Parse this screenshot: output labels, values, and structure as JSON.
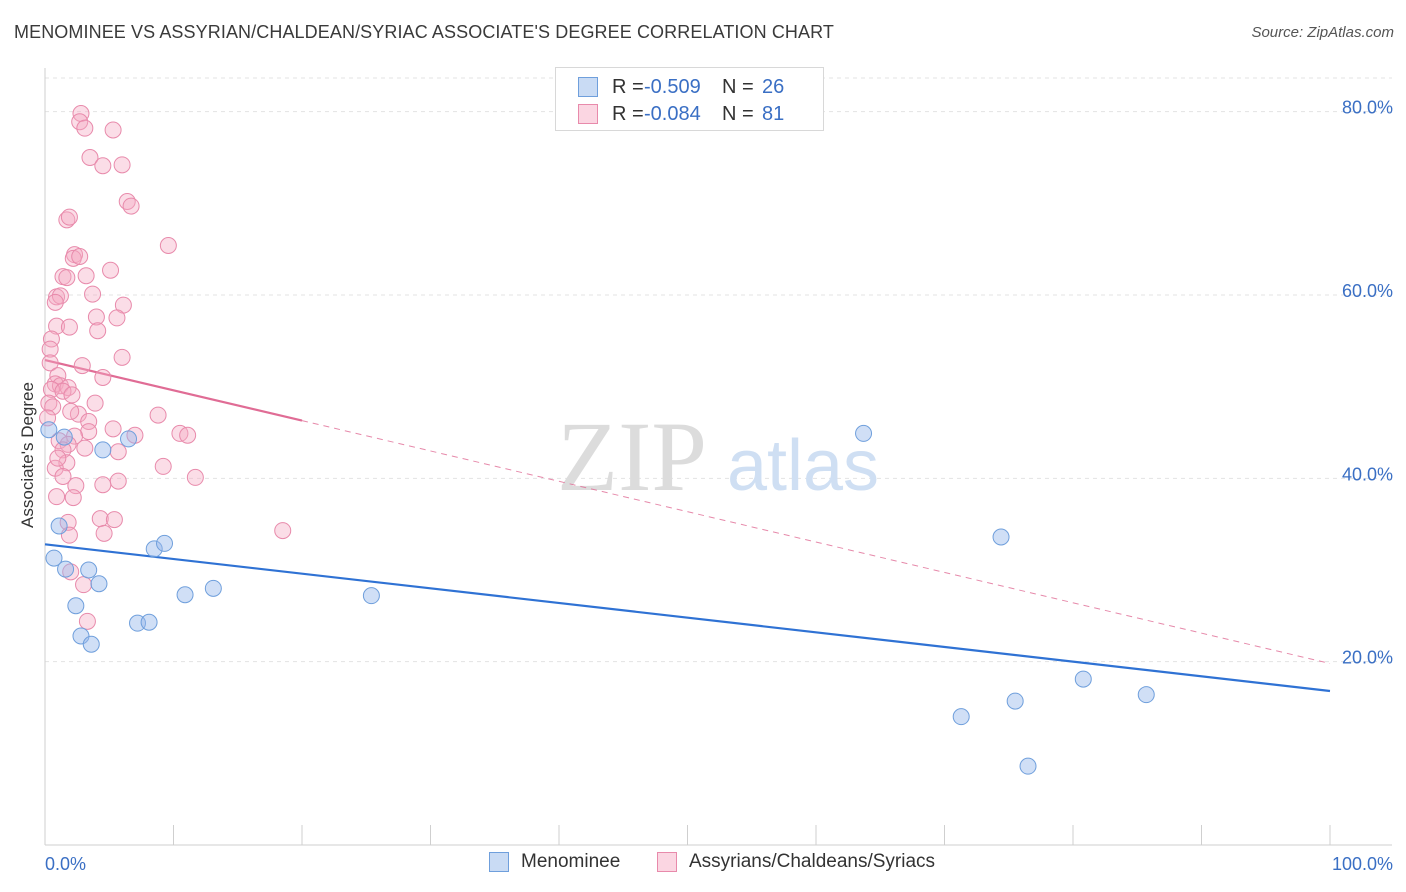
{
  "header": {
    "title": "MENOMINEE VS ASSYRIAN/CHALDEAN/SYRIAC ASSOCIATE'S DEGREE CORRELATION CHART",
    "source": "Source: ZipAtlas.com"
  },
  "watermark": {
    "zip": "ZIP",
    "atlas": "atlas"
  },
  "legend_top": {
    "rows": [
      {
        "r_label": "R =",
        "r_value": "-0.509",
        "n_label": "N =",
        "n_value": "26",
        "color": "#a9c6ee",
        "border": "#6f9fdc"
      },
      {
        "r_label": "R =",
        "r_value": "-0.084",
        "n_label": "N =",
        "n_value": "81",
        "color": "#f7bcd0",
        "border": "#e88aab"
      }
    ]
  },
  "legend_bottom": [
    {
      "label": "Menominee",
      "color": "#a9c6ee",
      "border": "#6f9fdc"
    },
    {
      "label": "Assyrians/Chaldeans/Syriacs",
      "color": "#f7bcd0",
      "border": "#e88aab"
    }
  ],
  "colors": {
    "blue_fill": "rgba(150,185,235,0.45)",
    "blue_stroke": "#6f9fdc",
    "blue_line": "#2f72d4",
    "pink_fill": "rgba(245,170,195,0.4)",
    "pink_stroke": "#e88aab",
    "pink_line": "#e06c95",
    "tick_label": "#3a6fc4",
    "grid": "#e3e3e3"
  },
  "chart_data": {
    "type": "scatter",
    "title": "MENOMINEE VS ASSYRIAN/CHALDEAN/SYRIAC ASSOCIATE'S DEGREE CORRELATION CHART",
    "xlabel": "",
    "ylabel": "Associate's Degree",
    "xlim": [
      0,
      100
    ],
    "ylim": [
      0,
      84
    ],
    "x_tick_labels": [
      "0.0%",
      "100.0%"
    ],
    "y_ticks": [
      20,
      40,
      60,
      80
    ],
    "y_tick_labels": [
      "20.0%",
      "40.0%",
      "60.0%",
      "80.0%"
    ],
    "grid": true,
    "legend_placement": "top-center",
    "series": [
      {
        "name": "Menominee",
        "r": -0.509,
        "n": 26,
        "trend": {
          "x": [
            0,
            100
          ],
          "y": [
            32.8,
            16.8
          ],
          "dashed_extension": false
        },
        "points": [
          [
            0.3,
            45.3
          ],
          [
            0.7,
            31.3
          ],
          [
            1.1,
            34.8
          ],
          [
            1.5,
            44.5
          ],
          [
            1.6,
            30.1
          ],
          [
            2.4,
            26.1
          ],
          [
            2.8,
            22.8
          ],
          [
            3.4,
            30.0
          ],
          [
            3.6,
            21.9
          ],
          [
            4.2,
            28.5
          ],
          [
            4.5,
            43.1
          ],
          [
            6.5,
            44.3
          ],
          [
            7.2,
            24.2
          ],
          [
            8.1,
            24.3
          ],
          [
            8.5,
            32.3
          ],
          [
            9.3,
            32.9
          ],
          [
            10.9,
            27.3
          ],
          [
            13.1,
            28.0
          ],
          [
            25.4,
            27.2
          ],
          [
            63.7,
            44.9
          ],
          [
            71.3,
            14.0
          ],
          [
            74.4,
            33.6
          ],
          [
            75.5,
            15.7
          ],
          [
            76.5,
            8.6
          ],
          [
            80.8,
            18.1
          ],
          [
            85.7,
            16.4
          ]
        ]
      },
      {
        "name": "Assyrians/Chaldeans/Syriacs",
        "r": -0.084,
        "n": 81,
        "trend": {
          "x": [
            0,
            20,
            100
          ],
          "y": [
            52.9,
            46.3,
            19.8
          ],
          "solid_until_x": 20
        },
        "points": [
          [
            2.8,
            79.8
          ],
          [
            2.7,
            78.9
          ],
          [
            3.1,
            78.2
          ],
          [
            5.3,
            78.0
          ],
          [
            3.5,
            75.0
          ],
          [
            4.5,
            74.1
          ],
          [
            6.0,
            74.2
          ],
          [
            6.4,
            70.2
          ],
          [
            6.7,
            69.7
          ],
          [
            1.7,
            68.2
          ],
          [
            1.9,
            68.5
          ],
          [
            9.6,
            65.4
          ],
          [
            2.3,
            64.4
          ],
          [
            2.2,
            64.0
          ],
          [
            2.7,
            64.2
          ],
          [
            5.1,
            62.7
          ],
          [
            1.4,
            62.0
          ],
          [
            1.7,
            61.9
          ],
          [
            3.2,
            62.1
          ],
          [
            0.9,
            59.8
          ],
          [
            1.2,
            59.9
          ],
          [
            3.7,
            60.1
          ],
          [
            0.8,
            59.2
          ],
          [
            6.1,
            58.9
          ],
          [
            4.0,
            57.6
          ],
          [
            5.6,
            57.5
          ],
          [
            0.9,
            56.6
          ],
          [
            1.9,
            56.5
          ],
          [
            4.1,
            56.1
          ],
          [
            0.5,
            55.2
          ],
          [
            0.4,
            54.1
          ],
          [
            6.0,
            53.2
          ],
          [
            0.4,
            52.6
          ],
          [
            2.9,
            52.3
          ],
          [
            1.0,
            51.2
          ],
          [
            4.5,
            51.0
          ],
          [
            0.8,
            50.3
          ],
          [
            1.2,
            50.1
          ],
          [
            1.8,
            49.9
          ],
          [
            0.5,
            49.7
          ],
          [
            1.4,
            49.5
          ],
          [
            2.1,
            49.1
          ],
          [
            0.3,
            48.2
          ],
          [
            0.6,
            47.8
          ],
          [
            3.9,
            48.2
          ],
          [
            2.6,
            47.0
          ],
          [
            8.8,
            46.9
          ],
          [
            3.4,
            46.2
          ],
          [
            5.3,
            45.4
          ],
          [
            3.4,
            45.1
          ],
          [
            10.5,
            44.9
          ],
          [
            11.1,
            44.7
          ],
          [
            2.3,
            44.6
          ],
          [
            7.0,
            44.7
          ],
          [
            1.1,
            44.1
          ],
          [
            1.8,
            43.7
          ],
          [
            1.4,
            43.1
          ],
          [
            5.7,
            42.9
          ],
          [
            1.7,
            41.7
          ],
          [
            9.2,
            41.3
          ],
          [
            0.8,
            41.1
          ],
          [
            11.7,
            40.1
          ],
          [
            1.4,
            40.2
          ],
          [
            5.7,
            39.7
          ],
          [
            4.5,
            39.3
          ],
          [
            2.4,
            39.2
          ],
          [
            0.9,
            38.0
          ],
          [
            2.2,
            37.9
          ],
          [
            4.3,
            35.6
          ],
          [
            5.4,
            35.5
          ],
          [
            1.8,
            35.2
          ],
          [
            18.5,
            34.3
          ],
          [
            4.6,
            34.0
          ],
          [
            1.9,
            33.8
          ],
          [
            2.0,
            29.8
          ],
          [
            3.0,
            28.4
          ],
          [
            3.3,
            24.4
          ],
          [
            0.2,
            46.6
          ],
          [
            1.0,
            42.2
          ],
          [
            3.1,
            43.3
          ],
          [
            2.0,
            47.3
          ]
        ]
      }
    ]
  }
}
